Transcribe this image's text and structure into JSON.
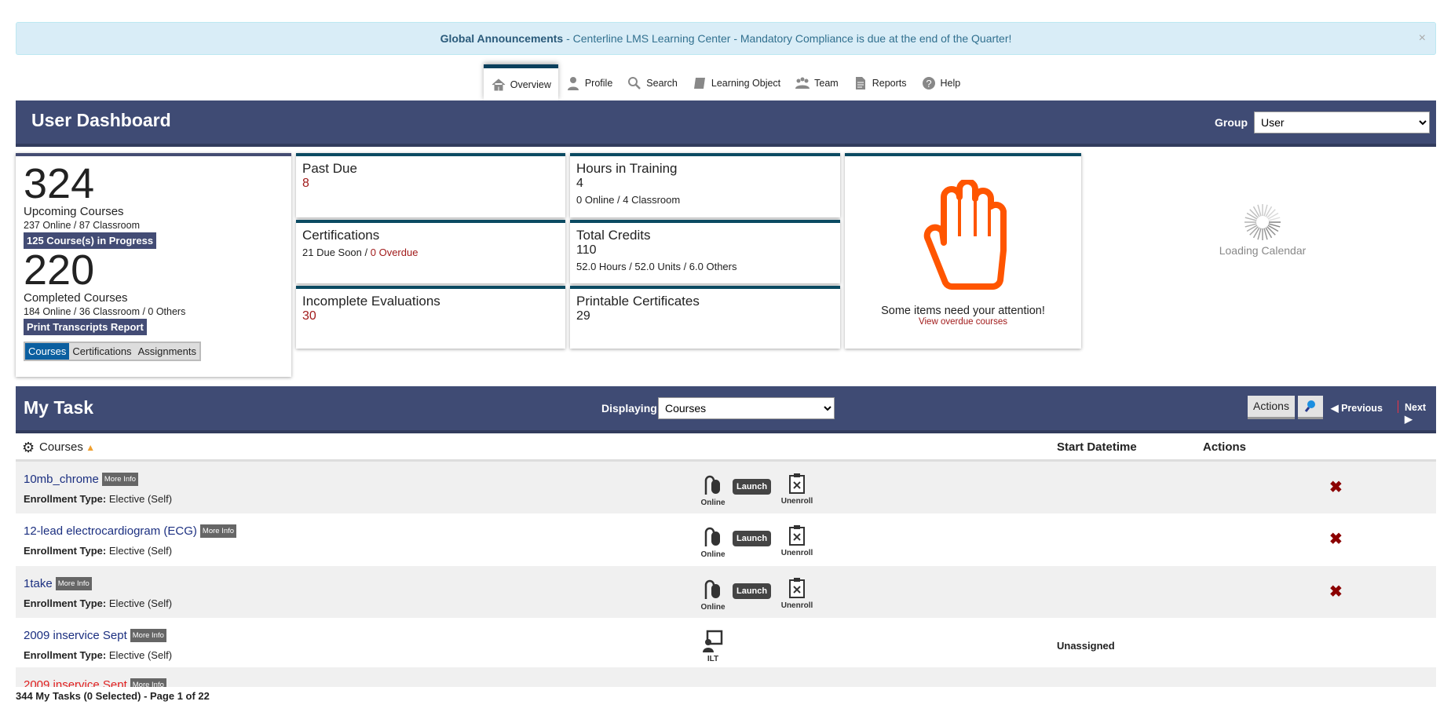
{
  "announcement": {
    "label": "Global Announcements",
    "text": " - Centerline LMS Learning Center - Mandatory Compliance is due at the end of the Quarter!",
    "close": "×"
  },
  "nav": [
    {
      "label": "Overview",
      "icon": "home-icon"
    },
    {
      "label": "Profile",
      "icon": "user-icon"
    },
    {
      "label": "Search",
      "icon": "search-icon"
    },
    {
      "label": "Learning Object",
      "icon": "book-icon"
    },
    {
      "label": "Team",
      "icon": "team-icon"
    },
    {
      "label": "Reports",
      "icon": "report-icon"
    },
    {
      "label": "Help",
      "icon": "help-icon"
    }
  ],
  "header": {
    "title": "User Dashboard",
    "group_label": "Group",
    "group_value": "User"
  },
  "summary": {
    "upcoming": "324",
    "upcoming_label": "Upcoming Courses",
    "upcoming_detail": "237 Online / 87 Classroom",
    "in_progress": "125 Course(s) in Progress",
    "completed": "220",
    "completed_label": "Completed Courses",
    "completed_detail": "184 Online / 36 Classroom / 0 Others",
    "print_btn": "Print Transcripts Report",
    "tabs": [
      "Courses",
      "Certifications",
      "Assignments"
    ]
  },
  "cards": {
    "past_due": {
      "title": "Past Due",
      "value": "8"
    },
    "hours": {
      "title": "Hours in Training",
      "value": "4",
      "detail": "0 Online / 4 Classroom"
    },
    "certs": {
      "title": "Certifications",
      "due": "21 Due Soon",
      "sep": " / ",
      "overdue": "0 Overdue"
    },
    "credits": {
      "title": "Total Credits",
      "value": "110",
      "detail": "52.0 Hours / 52.0 Units / 6.0 Others"
    },
    "evals": {
      "title": "Incomplete Evaluations",
      "value": "30"
    },
    "printable": {
      "title": "Printable Certificates",
      "value": "29"
    }
  },
  "attention": {
    "text": "Some items need your attention!",
    "link": "View overdue courses",
    "color": "#ff5500"
  },
  "calendar": {
    "text": "Loading Calendar"
  },
  "task": {
    "title": "My Task",
    "displaying_label": "Displaying",
    "displaying_value": "Courses",
    "actions": "Actions",
    "previous": "Previous",
    "next": "Next"
  },
  "columns": {
    "courses": "Courses",
    "start": "Start Datetime",
    "actions": "Actions"
  },
  "rows": [
    {
      "name": "10mb_chrome",
      "more": "More Info",
      "et_label": "Enrollment Type:",
      "et": " Elective (Self)",
      "type": "Online",
      "launch": "Launch",
      "unenroll": "Unenroll",
      "start": ""
    },
    {
      "name": "12-lead electrocardiogram (ECG)",
      "more": "More Info",
      "et_label": "Enrollment Type:",
      "et": " Elective (Self)",
      "type": "Online",
      "launch": "Launch",
      "unenroll": "Unenroll",
      "start": ""
    },
    {
      "name": "1take",
      "more": "More Info",
      "et_label": "Enrollment Type:",
      "et": " Elective (Self)",
      "type": "Online",
      "launch": "Launch",
      "unenroll": "Unenroll",
      "start": ""
    },
    {
      "name": "2009 inservice Sept",
      "more": "More Info",
      "et_label": "Enrollment Type:",
      "et": " Elective (Self)",
      "type": "ILT",
      "start": "Unassigned"
    },
    {
      "name": "2009 inservice Sept",
      "more": "More Info",
      "overdue": true
    }
  ],
  "footer": "344 My Tasks (0 Selected) - Page 1 of 22"
}
